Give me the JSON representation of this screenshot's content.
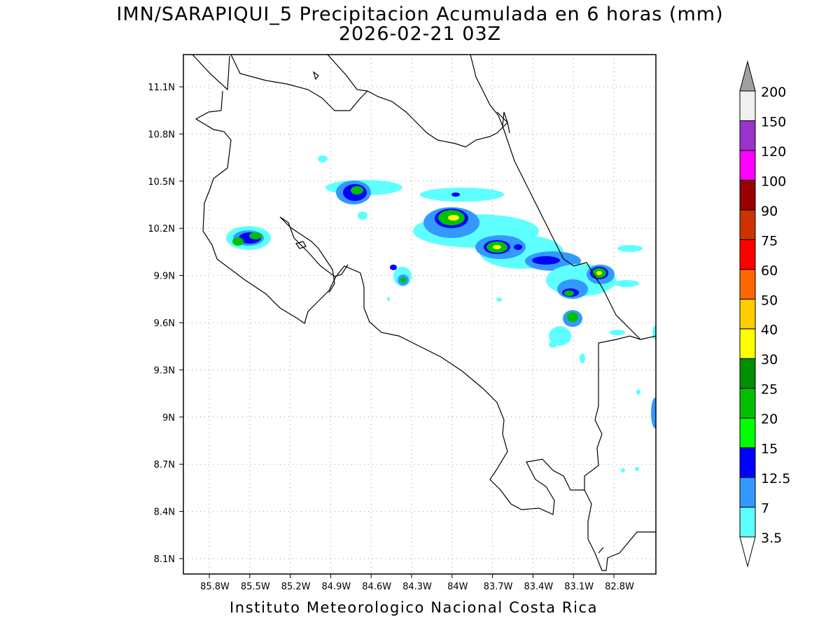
{
  "title": "IMN/SARAPIQUI_5 Precipitacion Acumulada en 6 horas (mm)",
  "subtitle": "2026-02-21 03Z",
  "footer": "Instituto Meteorologico Nacional Costa Rica",
  "lat_labels": [
    "11.1N",
    "10.8N",
    "10.5N",
    "10.2N",
    "9.9N",
    "9.6N",
    "9.3N",
    "9N",
    "8.7N",
    "8.4N",
    "8.1N"
  ],
  "lon_labels": [
    "85.8W",
    "85.5W",
    "85.2W",
    "84.9W",
    "84.6W",
    "84.3W",
    "84W",
    "83.7W",
    "83.4W",
    "83.1W",
    "82.8W"
  ],
  "colorbar": {
    "levels": [
      "3.5",
      "7",
      "12.5",
      "15",
      "20",
      "25",
      "30",
      "40",
      "50",
      "60",
      "75",
      "90",
      "100",
      "120",
      "150",
      "200"
    ],
    "colors": [
      "#ffffff",
      "#5effff",
      "#3399ff",
      "#0000ff",
      "#00ff00",
      "#00c000",
      "#008f00",
      "#ffff00",
      "#ffcc00",
      "#ff6600",
      "#ff0000",
      "#cc3300",
      "#990000",
      "#ff00ff",
      "#9933cc",
      "#f0f0f0",
      "#a0a0a0"
    ]
  },
  "precip_cells": [
    {
      "lon": -85.5,
      "lat": 10.13,
      "mm": 22
    },
    {
      "lon": -84.68,
      "lat": 10.45,
      "mm": 22
    },
    {
      "lon": -84.38,
      "lat": 9.88,
      "mm": 22
    },
    {
      "lon": -84.03,
      "lat": 10.25,
      "mm": 34
    },
    {
      "lon": -83.72,
      "lat": 10.08,
      "mm": 34
    },
    {
      "lon": -83.13,
      "lat": 9.81,
      "mm": 17
    },
    {
      "lon": -82.92,
      "lat": 9.92,
      "mm": 34
    },
    {
      "lon": -83.1,
      "lat": 9.63,
      "mm": 22
    }
  ]
}
